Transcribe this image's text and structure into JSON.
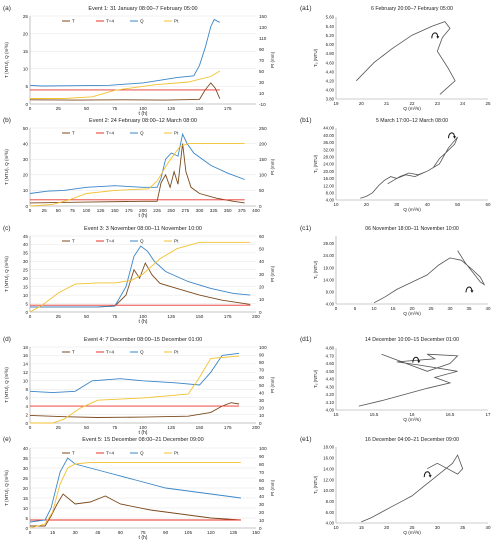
{
  "colors": {
    "T": "#7b4a1e",
    "T4": "#e8302a",
    "Q": "#3a86c8",
    "Pt": "#f2c230",
    "axis": "#9a9a9a",
    "grid": "#e4e4e4",
    "text": "#222222",
    "curve": "#555555"
  },
  "chart_data": [
    {
      "type": "line",
      "panel_label": "(a)",
      "title": "Event 1: 31 January 08:00–7 February 05:00",
      "xlabel": "t (h)",
      "ylabel": "T (NTU), Q (m³/s)",
      "y2label": "Pt (mm)",
      "xlim": [
        0,
        200
      ],
      "xticks": [
        0,
        25,
        50,
        75,
        100,
        125,
        150,
        175
      ],
      "ylim": [
        0,
        25
      ],
      "yticks": [
        0,
        5,
        10,
        15,
        20,
        25
      ],
      "y2lim": [
        -10,
        150
      ],
      "y2ticks": [
        -10,
        10,
        30,
        50,
        70,
        90,
        110,
        130,
        150
      ],
      "legend": [
        "T",
        "T=4",
        "Q",
        "Pt"
      ],
      "series": [
        {
          "name": "T",
          "axis": "left",
          "x": [
            0,
            40,
            80,
            120,
            150,
            155,
            160,
            164,
            168
          ],
          "y": [
            1.2,
            1.1,
            1.2,
            1.1,
            1.3,
            4,
            6,
            4.5,
            1.5
          ]
        },
        {
          "name": "T=4",
          "axis": "left",
          "x": [
            0,
            168
          ],
          "y": [
            4,
            4
          ]
        },
        {
          "name": "Q",
          "axis": "left",
          "x": [
            0,
            10,
            40,
            70,
            100,
            130,
            145,
            150,
            155,
            160,
            163,
            166,
            168
          ],
          "y": [
            5.3,
            5.1,
            5.2,
            5.3,
            6.0,
            7.5,
            8.0,
            11,
            16,
            22,
            24,
            23.5,
            23.2
          ]
        },
        {
          "name": "Pt",
          "axis": "right",
          "x": [
            0,
            30,
            55,
            75,
            110,
            140,
            160,
            168
          ],
          "y": [
            0,
            0,
            3,
            15,
            25,
            30,
            40,
            50
          ]
        }
      ]
    },
    {
      "type": "line",
      "panel_label": "(b)",
      "title": "Event 2: 24 February 08:00–12 March 08:00",
      "xlabel": "t (h)",
      "ylabel": "T (NTU), Q (m³/s)",
      "y2label": "Pt (mm)",
      "xlim": [
        0,
        400
      ],
      "xticks": [
        0,
        25,
        50,
        75,
        100,
        125,
        150,
        175,
        200,
        225,
        250,
        275,
        300,
        325,
        350,
        375,
        400
      ],
      "ylim": [
        0,
        50
      ],
      "yticks": [
        0,
        10,
        20,
        30,
        40,
        50
      ],
      "y2lim": [
        0,
        250
      ],
      "y2ticks": [
        0,
        50,
        100,
        150,
        200,
        250
      ],
      "legend": [
        "T",
        "T=4",
        "Q",
        "Pt"
      ],
      "series": [
        {
          "name": "T",
          "axis": "left",
          "x": [
            0,
            100,
            200,
            225,
            232,
            240,
            248,
            255,
            262,
            270,
            276,
            285,
            300,
            330,
            360,
            380
          ],
          "y": [
            2,
            2.5,
            3,
            3,
            15,
            20,
            12,
            22,
            14,
            40,
            22,
            12,
            8,
            5,
            3,
            2
          ]
        },
        {
          "name": "T=4",
          "axis": "left",
          "x": [
            0,
            380
          ],
          "y": [
            4,
            4
          ]
        },
        {
          "name": "Q",
          "axis": "left",
          "x": [
            0,
            30,
            60,
            100,
            150,
            200,
            225,
            232,
            240,
            250,
            262,
            270,
            278,
            290,
            320,
            350,
            380
          ],
          "y": [
            8,
            9.5,
            10,
            12,
            13,
            12,
            12,
            18,
            30,
            34,
            32,
            46,
            40,
            34,
            26,
            21,
            17
          ]
        },
        {
          "name": "Pt",
          "axis": "right",
          "x": [
            0,
            40,
            70,
            100,
            150,
            210,
            225,
            245,
            265,
            280,
            380
          ],
          "y": [
            0,
            5,
            20,
            40,
            50,
            55,
            80,
            140,
            190,
            200,
            200
          ]
        }
      ]
    },
    {
      "type": "line",
      "panel_label": "(c)",
      "title": "Event 3: 3 November 08:00–11 November 10:00",
      "xlabel": "t (h)",
      "ylabel": "T (NTU), Q (m³/s)",
      "y2label": "Pt (mm)",
      "xlim": [
        0,
        200
      ],
      "xticks": [
        0,
        25,
        50,
        75,
        100,
        125,
        150,
        175,
        200
      ],
      "ylim": [
        0,
        45
      ],
      "yticks": [
        0,
        5,
        10,
        15,
        20,
        25,
        30,
        35,
        40,
        45
      ],
      "y2lim": [
        0,
        60
      ],
      "y2ticks": [
        0,
        10,
        20,
        30,
        40,
        50,
        60
      ],
      "legend": [
        "T",
        "T=4",
        "Q",
        "Pt"
      ],
      "series": [
        {
          "name": "T",
          "axis": "left",
          "x": [
            0,
            60,
            75,
            85,
            92,
            97,
            102,
            108,
            115,
            130,
            150,
            170,
            195
          ],
          "y": [
            3,
            3,
            3.5,
            10,
            25,
            20,
            29,
            22,
            17,
            14,
            10,
            7,
            4.5
          ]
        },
        {
          "name": "T=4",
          "axis": "left",
          "x": [
            0,
            195
          ],
          "y": [
            4,
            4
          ]
        },
        {
          "name": "Q",
          "axis": "left",
          "x": [
            0,
            60,
            75,
            85,
            92,
            98,
            104,
            110,
            120,
            140,
            160,
            180,
            195
          ],
          "y": [
            3,
            3,
            3.5,
            15,
            33,
            39,
            36,
            30,
            24,
            18,
            14,
            11,
            10
          ]
        },
        {
          "name": "Pt",
          "axis": "right",
          "x": [
            0,
            10,
            25,
            40,
            60,
            75,
            90,
            100,
            115,
            130,
            150,
            195
          ],
          "y": [
            0,
            5,
            15,
            22,
            23,
            23,
            25,
            30,
            42,
            50,
            55,
            55
          ]
        }
      ]
    },
    {
      "type": "line",
      "panel_label": "(d)",
      "title": "Event 4: 7 December 08:00–15 December 01:00",
      "xlabel": "t (h)",
      "ylabel": "T (NTU), Q (m³/s)",
      "y2label": "Pt (mm)",
      "xlim": [
        0,
        200
      ],
      "xticks": [
        0,
        25,
        50,
        75,
        100,
        125,
        150,
        175,
        200
      ],
      "ylim": [
        0,
        18
      ],
      "yticks": [
        0,
        2,
        4,
        6,
        8,
        10,
        12,
        14,
        16,
        18
      ],
      "y2lim": [
        0,
        100
      ],
      "y2ticks": [
        0,
        10,
        20,
        30,
        40,
        50,
        60,
        70,
        80,
        90,
        100
      ],
      "legend": [
        "T",
        "T=4",
        "Q",
        "Pt"
      ],
      "series": [
        {
          "name": "T",
          "axis": "left",
          "x": [
            0,
            30,
            60,
            100,
            140,
            160,
            170,
            178,
            185
          ],
          "y": [
            1.8,
            1.5,
            1.3,
            1.4,
            1.6,
            2.5,
            4,
            4.8,
            4.5
          ]
        },
        {
          "name": "T=4",
          "axis": "left",
          "x": [
            0,
            185
          ],
          "y": [
            4,
            4
          ]
        },
        {
          "name": "Q",
          "axis": "left",
          "x": [
            0,
            20,
            40,
            55,
            80,
            100,
            130,
            150,
            160,
            170,
            185
          ],
          "y": [
            7.5,
            7.2,
            7.5,
            10,
            10.5,
            10,
            9.5,
            9,
            12,
            16,
            16.5
          ]
        },
        {
          "name": "Pt",
          "axis": "right",
          "x": [
            0,
            20,
            30,
            45,
            60,
            100,
            140,
            150,
            160,
            185
          ],
          "y": [
            0,
            0,
            5,
            20,
            30,
            33,
            38,
            60,
            85,
            88
          ]
        }
      ]
    },
    {
      "type": "line",
      "panel_label": "(e)",
      "title": "Event 5: 15 December 08:00–21 December 09:00",
      "xlabel": "t (h)",
      "ylabel": "T (NTU), Q (m³/s)",
      "y2label": "Pt (mm)",
      "xlim": [
        0,
        150
      ],
      "xticks": [
        0,
        15,
        30,
        45,
        60,
        75,
        90,
        105,
        120,
        135,
        150
      ],
      "ylim": [
        0,
        40
      ],
      "yticks": [
        0,
        5,
        10,
        15,
        20,
        25,
        30,
        35,
        40
      ],
      "y2lim": [
        0,
        100
      ],
      "y2ticks": [
        0,
        10,
        20,
        30,
        40,
        50,
        60,
        70,
        80,
        90,
        100
      ],
      "legend": [
        "T",
        "T=4",
        "Q",
        "Pt"
      ],
      "series": [
        {
          "name": "T",
          "axis": "left",
          "x": [
            0,
            10,
            14,
            18,
            22,
            30,
            40,
            50,
            60,
            80,
            100,
            120,
            140
          ],
          "y": [
            1,
            1,
            6,
            12,
            17,
            12,
            13,
            16,
            12,
            9,
            7,
            5,
            4
          ]
        },
        {
          "name": "T=4",
          "axis": "left",
          "x": [
            0,
            140
          ],
          "y": [
            4,
            4
          ]
        },
        {
          "name": "Q",
          "axis": "left",
          "x": [
            0,
            10,
            14,
            20,
            25,
            30,
            40,
            50,
            70,
            90,
            110,
            130,
            140
          ],
          "y": [
            3,
            4,
            10,
            28,
            35,
            32,
            30,
            28,
            24,
            20,
            18,
            16,
            15
          ]
        },
        {
          "name": "Pt",
          "axis": "right",
          "x": [
            0,
            10,
            15,
            20,
            25,
            30,
            40,
            140
          ],
          "y": [
            0,
            5,
            20,
            55,
            75,
            80,
            82,
            82
          ]
        }
      ]
    },
    {
      "type": "scatter",
      "panel_label": "(a1)",
      "title": "6 February 20:00–7 February 05:00",
      "xlabel": "Q (m³/s)",
      "ylabel": "Tᵤ (NTU)",
      "xlim": [
        19,
        25
      ],
      "xticks": [
        "19",
        "20",
        "21",
        "22",
        "23",
        "24",
        "25"
      ],
      "ylim": [
        3.8,
        5.6
      ],
      "yticks": [
        "3.80",
        "4.00",
        "4.20",
        "4.40",
        "4.60",
        "4.80",
        "5.00",
        "5.20",
        "5.40",
        "5.60"
      ],
      "path": {
        "x": [
          19.8,
          20.5,
          21.2,
          22.0,
          22.8,
          23.3,
          23.5,
          23.2,
          23.0,
          23.4,
          23.7,
          23.3,
          23.1
        ],
        "y": [
          4.2,
          4.6,
          4.9,
          5.2,
          5.4,
          5.5,
          5.35,
          5.15,
          4.85,
          4.5,
          4.2,
          4.0,
          3.9
        ]
      },
      "arrow": {
        "x": 22.9,
        "y": 5.2
      }
    },
    {
      "type": "scatter",
      "panel_label": "(b1)",
      "title": "5 March 17:00–12 March 08:00",
      "xlabel": "Q (m³/s)",
      "ylabel": "Tᵤ (NTU)",
      "xlim": [
        10,
        60
      ],
      "xticks": [
        "10",
        "20",
        "30",
        "40",
        "50",
        "60"
      ],
      "ylim": [
        4,
        44
      ],
      "yticks": [
        "4.00",
        "8.00",
        "12.00",
        "16.00",
        "20.00",
        "24.00",
        "28.00",
        "32.00",
        "36.00",
        "40.00",
        "44.00"
      ],
      "path": {
        "x": [
          18,
          20,
          22,
          24,
          26,
          28,
          30,
          33,
          36,
          40,
          44,
          47,
          50,
          49,
          46,
          44,
          42,
          40,
          37,
          34,
          31,
          29,
          27
        ],
        "y": [
          5,
          6,
          8,
          12,
          15,
          17,
          16,
          18,
          17,
          20,
          24,
          33,
          39,
          35,
          30,
          27,
          22,
          20,
          18,
          19,
          17,
          15,
          13
        ]
      },
      "arrow": {
        "x": 48,
        "y": 40
      }
    },
    {
      "type": "scatter",
      "panel_label": "(c1)",
      "title": "06 November 18:00–11 November 10:00",
      "xlabel": "Q (m³/s)",
      "ylabel": "Tᵤ (NTU)",
      "xlim": [
        0,
        40
      ],
      "xticks": [
        "0",
        "5",
        "10",
        "15",
        "20",
        "25",
        "30",
        "35",
        "40"
      ],
      "ylim": [
        4,
        32
      ],
      "yticks": [
        "4.00",
        "9.00",
        "14.00",
        "19.00",
        "24.00",
        "29.00"
      ],
      "path": {
        "x": [
          10,
          13,
          16,
          20,
          24,
          27,
          30,
          33,
          36,
          38,
          39,
          38,
          36,
          34,
          32
        ],
        "y": [
          4.5,
          7,
          10,
          13,
          16,
          20,
          23,
          22,
          18,
          15,
          12,
          13,
          17,
          21,
          26
        ]
      },
      "arrow": {
        "x": 35,
        "y": 10
      }
    },
    {
      "type": "scatter",
      "panel_label": "(d1)",
      "title": "14 December 10:00–15 December 01:00",
      "xlabel": "Q (m³/s)",
      "ylabel": "Tᵤ (NTU)",
      "xlim": [
        15,
        17
      ],
      "xticks": [
        "15",
        "15.5",
        "16",
        "16.5",
        "17"
      ],
      "ylim": [
        4.0,
        4.8
      ],
      "yticks": [
        "4.00",
        "4.10",
        "4.20",
        "4.30",
        "4.40",
        "4.50",
        "4.60",
        "4.70",
        "4.80"
      ],
      "path": {
        "x": [
          15.3,
          15.6,
          15.9,
          16.2,
          16.5,
          16.3,
          16.6,
          16.1,
          15.8,
          16.3,
          16.2,
          16.6,
          16.5,
          16.2,
          15.6
        ],
        "y": [
          4.05,
          4.12,
          4.2,
          4.28,
          4.35,
          4.42,
          4.5,
          4.58,
          4.62,
          4.66,
          4.72,
          4.7,
          4.6,
          4.5,
          4.72
        ]
      },
      "arrow": {
        "x": 16.05,
        "y": 4.65
      }
    },
    {
      "type": "scatter",
      "panel_label": "(e1)",
      "title": "16 December 04:00–21 December 09:00",
      "xlabel": "Q (m³/s)",
      "ylabel": "Tᵤ (NTU)",
      "xlim": [
        10,
        40
      ],
      "xticks": [
        "10",
        "15",
        "20",
        "25",
        "30",
        "35",
        "40"
      ],
      "ylim": [
        4,
        18
      ],
      "yticks": [
        "4.00",
        "6.00",
        "8.00",
        "10.00",
        "12.00",
        "14.00",
        "16.00",
        "18.00"
      ],
      "path": {
        "x": [
          15,
          17,
          19,
          21,
          23,
          25,
          27,
          29,
          31,
          33,
          34,
          35,
          34,
          32,
          30,
          28
        ],
        "y": [
          4.2,
          5,
          6,
          7,
          8,
          9,
          10.5,
          12,
          13.5,
          15,
          16.5,
          14,
          13,
          14,
          15,
          14
        ]
      },
      "arrow": {
        "x": 28,
        "y": 13
      }
    }
  ]
}
